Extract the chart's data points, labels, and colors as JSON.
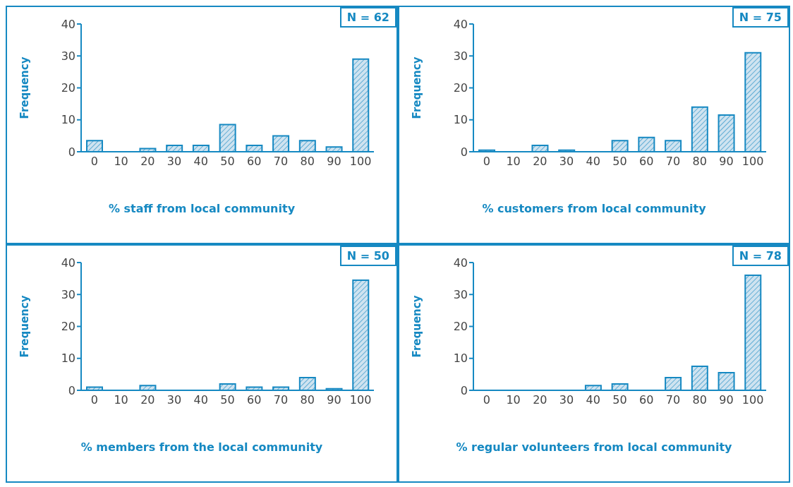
{
  "chart_data": [
    {
      "type": "bar",
      "categories": [
        "0",
        "10",
        "20",
        "30",
        "40",
        "50",
        "60",
        "70",
        "80",
        "90",
        "100"
      ],
      "values": [
        3.5,
        0,
        1,
        2,
        2,
        8.5,
        2,
        5,
        3.5,
        1.5,
        29
      ],
      "color": "#1689c2",
      "xlabel": "% staff from local community",
      "ylabel": "Frequency",
      "annotations": [
        "N = 62"
      ],
      "ylim": [
        0,
        40
      ],
      "yticks": [
        0,
        10,
        20,
        30,
        40
      ]
    },
    {
      "type": "bar",
      "categories": [
        "0",
        "10",
        "20",
        "30",
        "40",
        "50",
        "60",
        "70",
        "80",
        "90",
        "100"
      ],
      "values": [
        0.5,
        0,
        2,
        0.5,
        0,
        3.5,
        4.5,
        3.5,
        14,
        11.5,
        31
      ],
      "color": "#1689c2",
      "xlabel": "% customers from local community",
      "ylabel": "Frequency",
      "annotations": [
        "N = 75"
      ],
      "ylim": [
        0,
        40
      ],
      "yticks": [
        0,
        10,
        20,
        30,
        40
      ]
    },
    {
      "type": "bar",
      "categories": [
        "0",
        "10",
        "20",
        "30",
        "40",
        "50",
        "60",
        "70",
        "80",
        "90",
        "100"
      ],
      "values": [
        1,
        0,
        1.5,
        0,
        0,
        2,
        1,
        1,
        4,
        0.5,
        34.5
      ],
      "color": "#1689c2",
      "xlabel": "% members from the local community",
      "ylabel": "Frequency",
      "annotations": [
        "N = 50"
      ],
      "ylim": [
        0,
        40
      ],
      "yticks": [
        0,
        10,
        20,
        30,
        40
      ]
    },
    {
      "type": "bar",
      "categories": [
        "0",
        "10",
        "20",
        "30",
        "40",
        "50",
        "60",
        "70",
        "80",
        "90",
        "100"
      ],
      "values": [
        0,
        0,
        0,
        0,
        1.5,
        2,
        0,
        4,
        7.5,
        5.5,
        36
      ],
      "color": "#1689c2",
      "xlabel": "% regular volunteers from local community",
      "ylabel": "Frequency",
      "annotations": [
        "N = 78"
      ],
      "ylim": [
        0,
        40
      ],
      "yticks": [
        0,
        10,
        20,
        30,
        40
      ]
    }
  ]
}
